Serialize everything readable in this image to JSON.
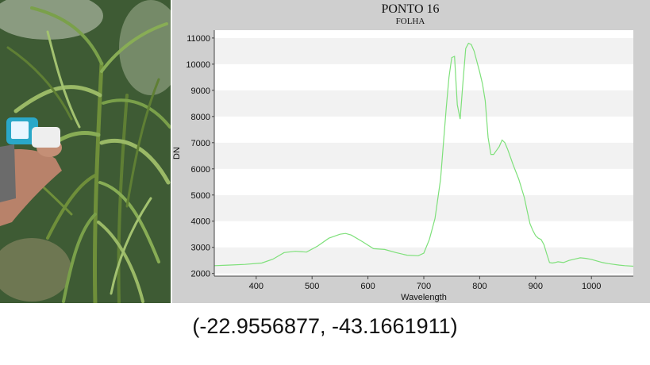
{
  "colors": {
    "panel_bg": "#cfcfcf",
    "plot_band_light": "#ffffff",
    "plot_band_dark": "#f2f2f2",
    "series_line": "#7ee07a",
    "axis": "#444444"
  },
  "photo": {
    "icon": "palm-leaf-photo",
    "device_icon": "spectroradiometer-icon"
  },
  "chart_data": {
    "type": "line",
    "title": "PONTO 16",
    "subtitle": "FOLHA",
    "xlabel": "Wavelength",
    "ylabel": "DN",
    "xlim": [
      325,
      1075
    ],
    "ylim": [
      1900,
      11300
    ],
    "x_ticks": [
      400,
      500,
      600,
      700,
      800,
      900,
      1000
    ],
    "y_ticks": [
      2000,
      3000,
      4000,
      5000,
      6000,
      7000,
      8000,
      9000,
      10000,
      11000
    ],
    "grid": "horizontal-bands",
    "legend": "none",
    "series": [
      {
        "x": [
          325,
          350,
          380,
          410,
          430,
          450,
          470,
          490,
          510,
          530,
          550,
          560,
          570,
          590,
          610,
          630,
          650,
          670,
          690,
          700,
          710,
          720,
          730,
          740,
          745,
          750,
          755,
          760,
          765,
          770,
          775,
          780,
          785,
          790,
          795,
          800,
          805,
          810,
          815,
          820,
          825,
          830,
          835,
          840,
          845,
          850,
          855,
          860,
          870,
          880,
          885,
          890,
          895,
          900,
          905,
          910,
          915,
          920,
          925,
          930,
          935,
          940,
          950,
          960,
          970,
          980,
          990,
          1000,
          1010,
          1020,
          1030,
          1040,
          1050,
          1060,
          1075
        ],
        "y": [
          2300,
          2320,
          2350,
          2400,
          2550,
          2800,
          2850,
          2820,
          3050,
          3350,
          3500,
          3530,
          3470,
          3220,
          2950,
          2920,
          2800,
          2700,
          2680,
          2780,
          3300,
          4100,
          5600,
          8300,
          9500,
          10250,
          10300,
          8450,
          7900,
          9300,
          10600,
          10800,
          10750,
          10500,
          10100,
          9700,
          9250,
          8600,
          7200,
          6550,
          6550,
          6700,
          6850,
          7100,
          7000,
          6750,
          6450,
          6150,
          5600,
          4900,
          4400,
          3900,
          3650,
          3450,
          3350,
          3300,
          3100,
          2750,
          2420,
          2400,
          2420,
          2450,
          2420,
          2500,
          2550,
          2600,
          2580,
          2540,
          2480,
          2420,
          2380,
          2350,
          2320,
          2300,
          2280
        ]
      }
    ]
  },
  "coordinates_caption": "(-22.9556877, -43.1661911)"
}
